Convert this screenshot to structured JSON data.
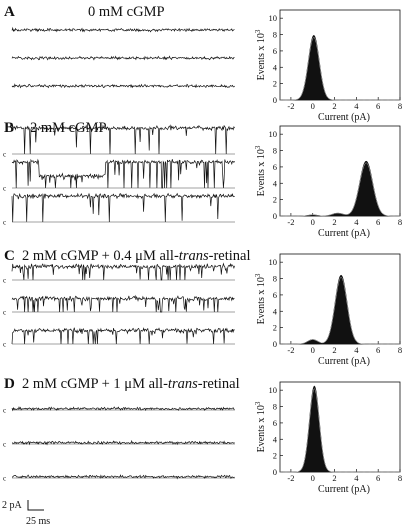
{
  "figure": {
    "scale_bar": {
      "current": "2 pA",
      "time": "25 ms"
    },
    "closed_label": "c",
    "hist_axes": {
      "xlabel": "Current (pA)",
      "ylabel": "Events x 10",
      "ylabel_exponent": "3",
      "xticks": [
        "-2",
        "0",
        "2",
        "4",
        "6",
        "8"
      ],
      "yticks": [
        "0",
        "2",
        "4",
        "6",
        "8",
        "10"
      ],
      "xlim": [
        -3,
        8
      ],
      "ylim": [
        0,
        11
      ]
    },
    "panels": [
      {
        "letter": "A",
        "title_parts": [
          "0 mM cGMP"
        ],
        "traces": [
          {
            "has_c": false,
            "level": 0.3,
            "open": 0.3,
            "open_prob": 0.0,
            "noise": 0.55
          },
          {
            "has_c": false,
            "level": 0.3,
            "open": 0.3,
            "open_prob": 0.0,
            "noise": 0.55
          },
          {
            "has_c": false,
            "level": 0.3,
            "open": 0.3,
            "open_prob": 0.0,
            "noise": 0.55
          }
        ]
      },
      {
        "letter": "B",
        "title_parts": [
          "2 mM cGMP"
        ],
        "traces": [
          {
            "has_c": true,
            "level": 5.0,
            "open": 5.0,
            "open_prob": 0.92,
            "noise": 0.8
          },
          {
            "has_c": true,
            "level": 5.0,
            "open": 5.0,
            "open_prob": 0.85,
            "noise": 0.8,
            "sublevel": {
              "from": 0.12,
              "to": 0.42,
              "value": 2.3
            }
          },
          {
            "has_c": true,
            "level": 5.0,
            "open": 5.0,
            "open_prob": 0.9,
            "noise": 0.8
          }
        ]
      },
      {
        "letter": "C",
        "title_parts": [
          "2 mM cGMP + 0.4 μM all-",
          "trans",
          "-retinal"
        ],
        "traces": [
          {
            "has_c": true,
            "level": 2.6,
            "open": 2.6,
            "open_prob": 0.85,
            "noise": 0.8
          },
          {
            "has_c": true,
            "level": 2.6,
            "open": 2.6,
            "open_prob": 0.8,
            "noise": 0.8
          },
          {
            "has_c": true,
            "level": 2.6,
            "open": 2.6,
            "open_prob": 0.85,
            "noise": 0.8
          }
        ]
      },
      {
        "letter": "D",
        "title_parts": [
          "2 mM cGMP + 1 μM all-",
          "trans",
          "-retinal"
        ],
        "traces": [
          {
            "has_c": true,
            "level": 0.25,
            "open": 0.25,
            "open_prob": 0.0,
            "noise": 0.5
          },
          {
            "has_c": true,
            "level": 0.25,
            "open": 0.25,
            "open_prob": 0.0,
            "noise": 0.5
          },
          {
            "has_c": true,
            "level": 0.25,
            "open": 0.25,
            "open_prob": 0.0,
            "noise": 0.5
          }
        ]
      }
    ]
  },
  "chart_data": [
    {
      "type": "area",
      "panel": "A",
      "xlabel": "Current (pA)",
      "ylabel": "Events x 10^3",
      "xlim": [
        -3,
        8
      ],
      "ylim": [
        0,
        11
      ],
      "peaks": [
        {
          "center": 0.1,
          "height": 7.9,
          "sigma": 0.5
        }
      ]
    },
    {
      "type": "area",
      "panel": "B",
      "xlabel": "Current (pA)",
      "ylabel": "Events x 10^3",
      "xlim": [
        -3,
        8
      ],
      "ylim": [
        0,
        11
      ],
      "peaks": [
        {
          "center": 4.9,
          "height": 6.7,
          "sigma": 0.6
        },
        {
          "center": 2.3,
          "height": 0.35,
          "sigma": 0.5
        },
        {
          "center": 0.0,
          "height": 0.15,
          "sigma": 0.4
        }
      ]
    },
    {
      "type": "area",
      "panel": "C",
      "xlabel": "Current (pA)",
      "ylabel": "Events x 10^3",
      "xlim": [
        -3,
        8
      ],
      "ylim": [
        0,
        11
      ],
      "peaks": [
        {
          "center": 2.6,
          "height": 8.4,
          "sigma": 0.55
        },
        {
          "center": 0.0,
          "height": 0.55,
          "sigma": 0.45
        }
      ]
    },
    {
      "type": "area",
      "panel": "D",
      "xlabel": "Current (pA)",
      "ylabel": "Events x 10^3",
      "xlim": [
        -3,
        8
      ],
      "ylim": [
        0,
        11
      ],
      "peaks": [
        {
          "center": 0.15,
          "height": 10.5,
          "sigma": 0.45
        }
      ]
    }
  ]
}
